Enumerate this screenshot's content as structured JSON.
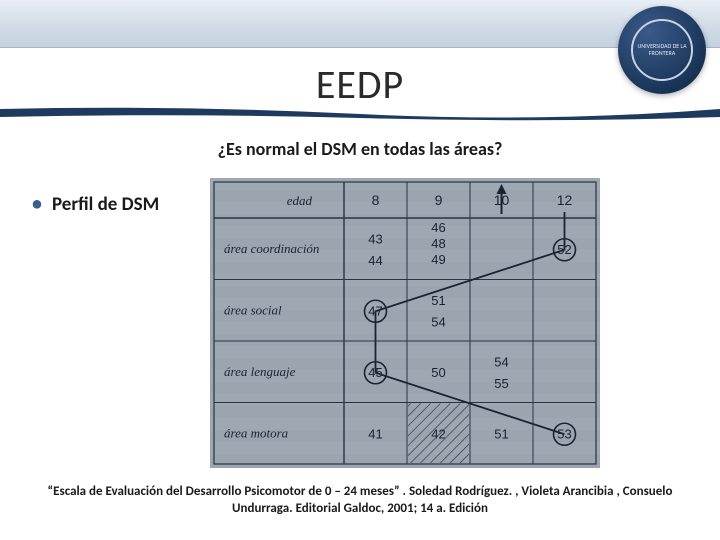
{
  "header": {
    "band_gradient": [
      "#e8eef5",
      "#d4dde8",
      "#c5d1e0"
    ],
    "curve_color": "#1e3a5f",
    "logo_text": "UNIVERSIDAD DE LA FRONTERA"
  },
  "title": "EEDP",
  "subtitle": "¿Es normal el DSM en todas las áreas?",
  "bullet": "Perfil de DSM",
  "figure": {
    "background": "#9aa5b0",
    "grid_color": "#2a3340",
    "text_color": "#1a2330",
    "row_labels": [
      "edad",
      "área coordinación",
      "área social",
      "área lenguaje",
      "área motora"
    ],
    "col_headers": [
      "8",
      "9",
      "10",
      "12"
    ],
    "row_cells": [
      [
        [
          "43",
          "44"
        ],
        [
          "46",
          "48",
          "49"
        ],
        [
          ""
        ],
        [
          "52"
        ]
      ],
      [
        [
          "47"
        ],
        [
          "51",
          "54"
        ],
        [
          ""
        ],
        [
          ""
        ]
      ],
      [
        [
          "45"
        ],
        [
          "50"
        ],
        [
          "54",
          "55"
        ],
        [
          ""
        ]
      ],
      [
        [
          "41"
        ],
        [
          "42"
        ],
        [
          "51"
        ],
        [
          "53"
        ]
      ]
    ],
    "circled": [
      "52",
      "47",
      "45",
      "53"
    ],
    "hatched_cell": {
      "row": 3,
      "col": 1
    },
    "label_col_width": 130,
    "data_col_width": 58,
    "header_row_height": 36,
    "data_row_height": 60,
    "font_size_label": 13,
    "font_size_cell": 13,
    "line_path": [
      {
        "row": 0,
        "col": 3,
        "val": "52"
      },
      {
        "row": 1,
        "col": 0,
        "val": "47"
      },
      {
        "row": 2,
        "col": 0,
        "val": "45"
      },
      {
        "row": 3,
        "col": 3,
        "val": "53"
      }
    ]
  },
  "citation": "“Escala de Evaluación del Desarrollo Psicomotor de 0 – 24 meses” . Soledad Rodríguez. , Violeta Arancibia , Consuelo Undurraga. Editorial Galdoc, 2001; 14 a. Edición"
}
